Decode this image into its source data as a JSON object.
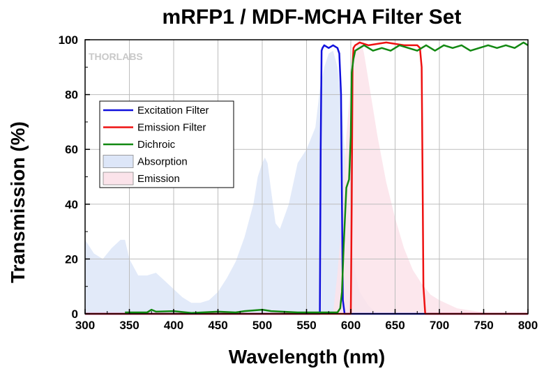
{
  "chart_data": {
    "type": "line",
    "title": "mRFP1 / MDF-MCHA Filter Set",
    "xlabel": "Wavelength (nm)",
    "ylabel": "Transmission (%)",
    "xlim": [
      300,
      800
    ],
    "ylim": [
      0,
      100
    ],
    "x_ticks": [
      300,
      350,
      400,
      450,
      500,
      550,
      600,
      650,
      700,
      750,
      800
    ],
    "y_ticks": [
      0,
      20,
      40,
      60,
      80,
      100
    ],
    "grid": true,
    "watermark": "THORLABS",
    "legend_position": "upper-left",
    "series": [
      {
        "name": "Excitation Filter",
        "kind": "line",
        "color": "#1010dd",
        "x": [
          300,
          565,
          566,
          567,
          568,
          570,
          575,
          580,
          585,
          587,
          589,
          590,
          591,
          593,
          800
        ],
        "y": [
          0,
          0,
          60,
          96,
          97,
          98,
          97,
          98,
          97,
          95,
          80,
          40,
          5,
          0,
          0
        ]
      },
      {
        "name": "Emission Filter",
        "kind": "line",
        "color": "#ee1111",
        "x": [
          300,
          600,
          601,
          602,
          603,
          605,
          610,
          620,
          640,
          660,
          675,
          678,
          680,
          681,
          682,
          684,
          800
        ],
        "y": [
          0,
          0,
          40,
          90,
          97,
          98,
          99,
          98,
          99,
          98,
          98,
          97,
          90,
          50,
          10,
          0,
          0
        ]
      },
      {
        "name": "Dichroic",
        "kind": "line",
        "color": "#118811",
        "x": [
          345,
          370,
          375,
          380,
          400,
          420,
          450,
          470,
          480,
          500,
          510,
          540,
          560,
          585,
          588,
          590,
          592,
          595,
          598,
          600,
          601,
          603,
          605,
          615,
          625,
          635,
          645,
          655,
          665,
          675,
          685,
          695,
          705,
          715,
          725,
          735,
          745,
          755,
          765,
          775,
          785,
          795,
          800
        ],
        "y": [
          0.5,
          0.5,
          1.5,
          0.8,
          1.0,
          0.3,
          0.8,
          0.5,
          1.0,
          1.5,
          1.0,
          0.5,
          0.5,
          0.5,
          2,
          8,
          25,
          46,
          49,
          65,
          88,
          93,
          96,
          98,
          96,
          97,
          96,
          98,
          97,
          96,
          98,
          96,
          98,
          97,
          98,
          96,
          97,
          98,
          97,
          98,
          97,
          99,
          98
        ]
      },
      {
        "name": "Absorption",
        "kind": "area",
        "color": "#dde6f8",
        "x": [
          300,
          310,
          320,
          330,
          340,
          345,
          350,
          360,
          370,
          380,
          390,
          400,
          410,
          420,
          430,
          440,
          450,
          460,
          470,
          480,
          490,
          495,
          500,
          503,
          506,
          510,
          515,
          520,
          530,
          540,
          550,
          560,
          565,
          570,
          575,
          580,
          585,
          590,
          595,
          600,
          605,
          610,
          620,
          630
        ],
        "y": [
          27,
          22,
          20,
          24,
          27,
          27,
          20,
          14,
          14,
          15,
          12,
          9,
          6,
          4,
          4,
          5,
          8,
          13,
          19,
          28,
          40,
          50,
          55,
          57,
          55,
          45,
          33,
          31,
          40,
          55,
          60,
          68,
          82,
          90,
          95,
          96,
          90,
          75,
          50,
          30,
          15,
          8,
          3,
          0
        ]
      },
      {
        "name": "Emission",
        "kind": "area",
        "color": "#fbe3ea",
        "x": [
          580,
          585,
          590,
          595,
          600,
          605,
          608,
          610,
          612,
          615,
          620,
          625,
          630,
          640,
          650,
          660,
          670,
          680,
          690,
          700,
          720,
          740,
          760
        ],
        "y": [
          0,
          15,
          35,
          65,
          85,
          96,
          99,
          100,
          99,
          95,
          85,
          75,
          65,
          48,
          35,
          24,
          16,
          11,
          7,
          5,
          2,
          1,
          0
        ]
      }
    ]
  }
}
